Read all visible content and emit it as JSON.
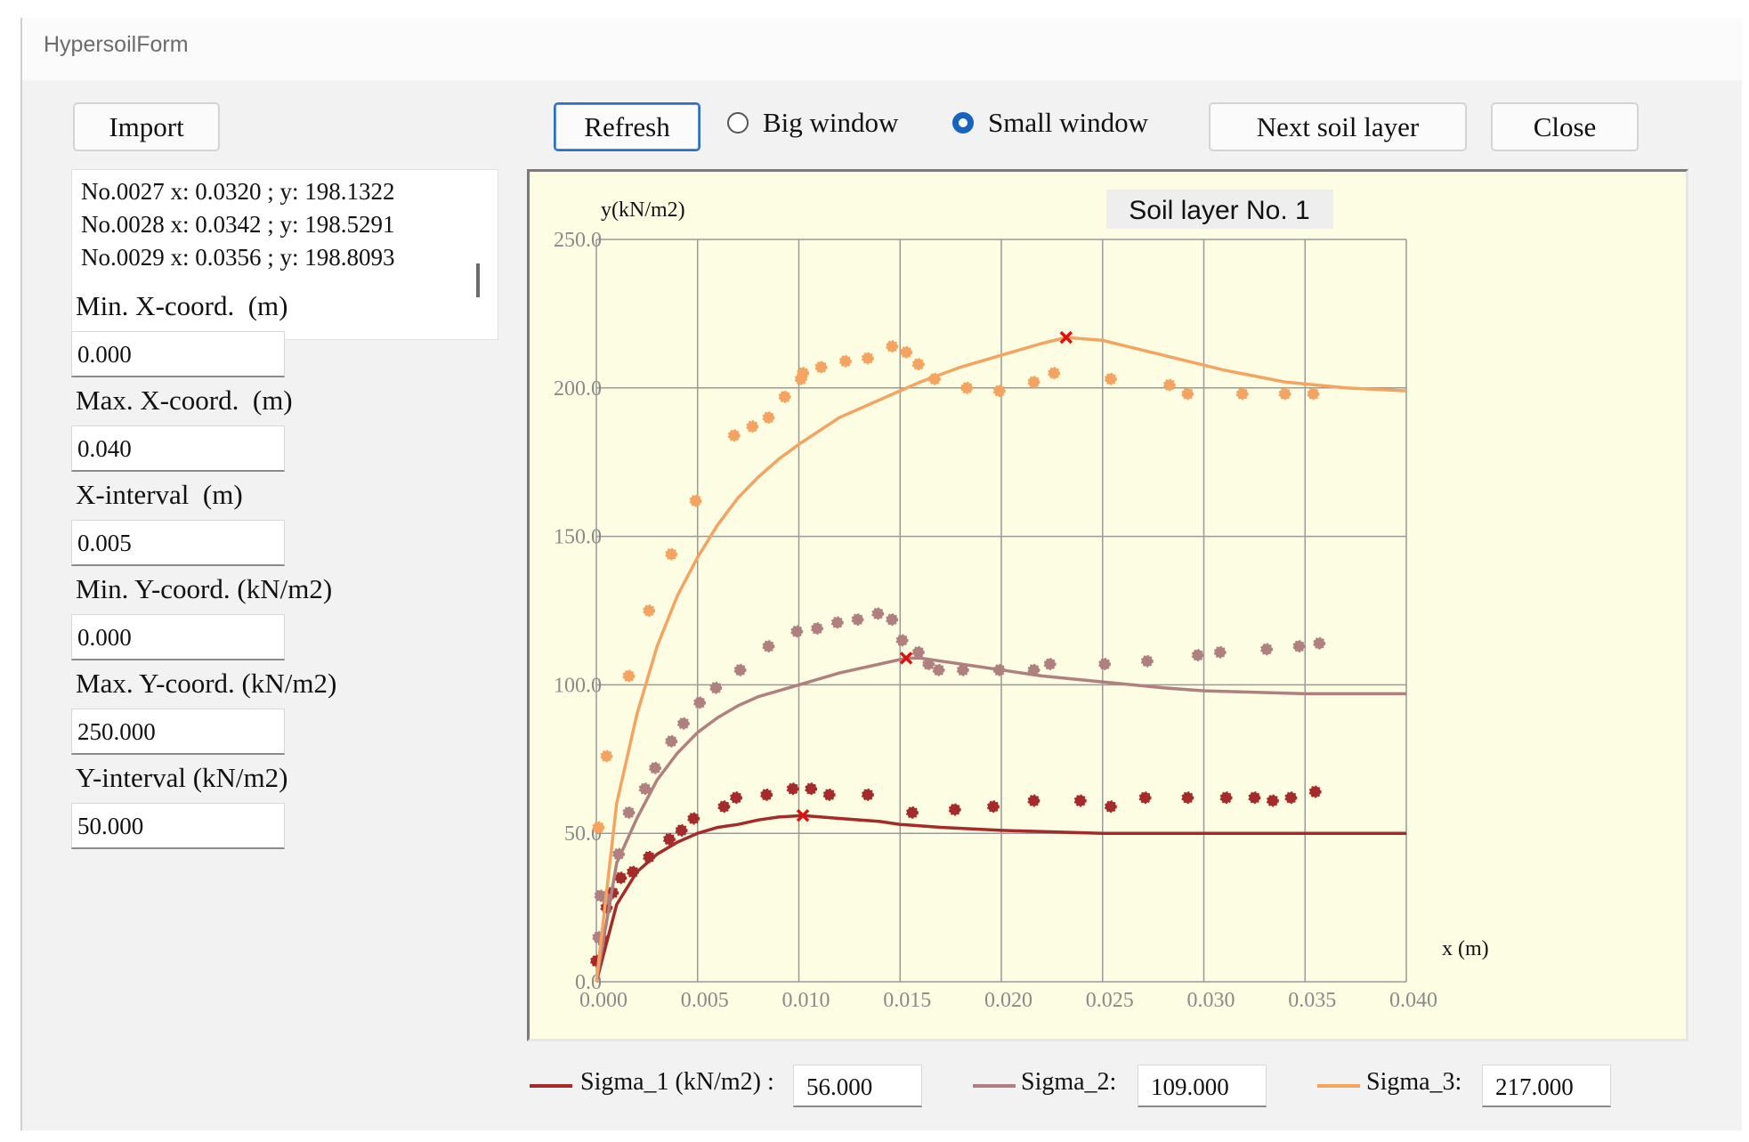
{
  "window": {
    "title": "HypersoilForm"
  },
  "toolbar": {
    "import_label": "Import",
    "refresh_label": "Refresh",
    "big_window_label": "Big window",
    "small_window_label": "Small window",
    "selected_window": "Small window",
    "next_layer_label": "Next soil layer",
    "close_label": "Close"
  },
  "points_list": [
    "No.0027 x: 0.0320 ; y: 198.1322",
    "No.0028 x: 0.0342 ; y: 198.5291",
    "No.0029 x: 0.0356 ; y: 198.8093"
  ],
  "fields": {
    "min_x": {
      "label": "Min. X-coord.  (m)",
      "value": "0.000"
    },
    "max_x": {
      "label": "Max. X-coord.  (m)",
      "value": "0.040"
    },
    "x_interval": {
      "label": "X-interval  (m)",
      "value": "0.005"
    },
    "min_y": {
      "label": "Min. Y-coord. (kN/m2)",
      "value": "0.000"
    },
    "max_y": {
      "label": "Max. Y-coord. (kN/m2)",
      "value": "250.000"
    },
    "y_interval": {
      "label": "Y-interval (kN/m2)",
      "value": "50.000"
    }
  },
  "legend": {
    "sigma1_label": "Sigma_1 (kN/m2) :",
    "sigma1_value": "56.000",
    "sigma2_label": "Sigma_2:",
    "sigma2_value": "109.000",
    "sigma3_label": "Sigma_3:",
    "sigma3_value": "217.000"
  },
  "chart_data": {
    "type": "scatter",
    "title": "Soil layer No. 1",
    "xlabel": "x (m)",
    "ylabel": "y(kN/m2)",
    "xlim": [
      0,
      0.04
    ],
    "ylim": [
      0,
      250
    ],
    "x_ticks": [
      "0.000",
      "0.005",
      "0.010",
      "0.015",
      "0.020",
      "0.025",
      "0.030",
      "0.035",
      "0.040"
    ],
    "y_ticks": [
      "0.0",
      "50.0",
      "100.0",
      "150.0",
      "200.0",
      "250.0"
    ],
    "grid": true,
    "series": [
      {
        "name": "Sigma_1 (kN/m2)",
        "color": "#a52a2a",
        "points": [
          [
            0.0,
            7
          ],
          [
            0.0003,
            14
          ],
          [
            0.0005,
            25
          ],
          [
            0.0008,
            30
          ],
          [
            0.0012,
            35
          ],
          [
            0.0018,
            37
          ],
          [
            0.0026,
            42
          ],
          [
            0.0036,
            48
          ],
          [
            0.0042,
            51
          ],
          [
            0.0048,
            55
          ],
          [
            0.0063,
            59
          ],
          [
            0.0069,
            62
          ],
          [
            0.0084,
            63
          ],
          [
            0.0097,
            65
          ],
          [
            0.0106,
            65
          ],
          [
            0.0115,
            63
          ],
          [
            0.0134,
            63
          ],
          [
            0.0156,
            57
          ],
          [
            0.0177,
            58
          ],
          [
            0.0196,
            59
          ],
          [
            0.0216,
            61
          ],
          [
            0.0239,
            61
          ],
          [
            0.0254,
            59
          ],
          [
            0.0271,
            62
          ],
          [
            0.0292,
            62
          ],
          [
            0.0311,
            62
          ],
          [
            0.0325,
            62
          ],
          [
            0.0334,
            61
          ],
          [
            0.0343,
            62
          ],
          [
            0.0355,
            64
          ]
        ],
        "curve": [
          [
            0,
            0
          ],
          [
            0.001,
            26
          ],
          [
            0.002,
            37
          ],
          [
            0.003,
            43
          ],
          [
            0.004,
            47
          ],
          [
            0.005,
            50
          ],
          [
            0.006,
            52
          ],
          [
            0.007,
            53
          ],
          [
            0.008,
            54.5
          ],
          [
            0.009,
            55.5
          ],
          [
            0.0102,
            56
          ],
          [
            0.012,
            55
          ],
          [
            0.014,
            54
          ],
          [
            0.015,
            53
          ],
          [
            0.017,
            52
          ],
          [
            0.02,
            51
          ],
          [
            0.025,
            50
          ],
          [
            0.03,
            50
          ],
          [
            0.035,
            50
          ],
          [
            0.04,
            50
          ]
        ],
        "peak": [
          0.0102,
          56
        ]
      },
      {
        "name": "Sigma_2",
        "color": "#b08080",
        "points": [
          [
            0.0001,
            15
          ],
          [
            0.0002,
            29
          ],
          [
            0.0005,
            28
          ],
          [
            0.0011,
            43
          ],
          [
            0.0016,
            57
          ],
          [
            0.0024,
            65
          ],
          [
            0.0029,
            72
          ],
          [
            0.0037,
            81
          ],
          [
            0.0043,
            87
          ],
          [
            0.0051,
            94
          ],
          [
            0.0059,
            99
          ],
          [
            0.0071,
            105
          ],
          [
            0.0085,
            113
          ],
          [
            0.0099,
            118
          ],
          [
            0.0109,
            119
          ],
          [
            0.0119,
            121
          ],
          [
            0.0129,
            122
          ],
          [
            0.0139,
            124
          ],
          [
            0.0146,
            122
          ],
          [
            0.0151,
            115
          ],
          [
            0.0159,
            111
          ],
          [
            0.0164,
            107
          ],
          [
            0.0169,
            105
          ],
          [
            0.0181,
            105
          ],
          [
            0.0199,
            105
          ],
          [
            0.0216,
            105
          ],
          [
            0.0224,
            107
          ],
          [
            0.0251,
            107
          ],
          [
            0.0272,
            108
          ],
          [
            0.0297,
            110
          ],
          [
            0.0308,
            111
          ],
          [
            0.0331,
            112
          ],
          [
            0.0347,
            113
          ],
          [
            0.0357,
            114
          ]
        ],
        "curve": [
          [
            0,
            0
          ],
          [
            0.001,
            40
          ],
          [
            0.002,
            55
          ],
          [
            0.003,
            68
          ],
          [
            0.004,
            77
          ],
          [
            0.005,
            84
          ],
          [
            0.006,
            89
          ],
          [
            0.007,
            93
          ],
          [
            0.008,
            96
          ],
          [
            0.009,
            98
          ],
          [
            0.01,
            100
          ],
          [
            0.012,
            104
          ],
          [
            0.014,
            107
          ],
          [
            0.0153,
            109
          ],
          [
            0.016,
            109
          ],
          [
            0.018,
            107
          ],
          [
            0.02,
            105
          ],
          [
            0.022,
            103
          ],
          [
            0.025,
            101
          ],
          [
            0.028,
            99
          ],
          [
            0.03,
            98
          ],
          [
            0.035,
            97
          ],
          [
            0.04,
            97
          ]
        ],
        "peak": [
          0.0153,
          109
        ]
      },
      {
        "name": "Sigma_3",
        "color": "#f4a460",
        "points": [
          [
            0.0001,
            52
          ],
          [
            0.0005,
            76
          ],
          [
            0.0016,
            103
          ],
          [
            0.0026,
            125
          ],
          [
            0.0037,
            144
          ],
          [
            0.0049,
            162
          ],
          [
            0.0068,
            184
          ],
          [
            0.0077,
            187
          ],
          [
            0.0085,
            190
          ],
          [
            0.0093,
            197
          ],
          [
            0.0101,
            203
          ],
          [
            0.0102,
            205
          ],
          [
            0.0111,
            207
          ],
          [
            0.0123,
            209
          ],
          [
            0.0134,
            210
          ],
          [
            0.0146,
            214
          ],
          [
            0.0153,
            212
          ],
          [
            0.0159,
            208
          ],
          [
            0.0167,
            203
          ],
          [
            0.0183,
            200
          ],
          [
            0.0199,
            199
          ],
          [
            0.0216,
            202
          ],
          [
            0.0226,
            205
          ],
          [
            0.0254,
            203
          ],
          [
            0.0283,
            201
          ],
          [
            0.0292,
            198
          ],
          [
            0.0319,
            198
          ],
          [
            0.034,
            198
          ],
          [
            0.0354,
            198
          ]
        ],
        "curve": [
          [
            0,
            0
          ],
          [
            0.001,
            60
          ],
          [
            0.002,
            90
          ],
          [
            0.003,
            113
          ],
          [
            0.004,
            130
          ],
          [
            0.005,
            143
          ],
          [
            0.006,
            154
          ],
          [
            0.007,
            163
          ],
          [
            0.008,
            170
          ],
          [
            0.009,
            176
          ],
          [
            0.01,
            181
          ],
          [
            0.012,
            190
          ],
          [
            0.014,
            196
          ],
          [
            0.016,
            202
          ],
          [
            0.018,
            207
          ],
          [
            0.02,
            211
          ],
          [
            0.022,
            215
          ],
          [
            0.0232,
            217
          ],
          [
            0.025,
            216
          ],
          [
            0.028,
            211
          ],
          [
            0.031,
            206
          ],
          [
            0.034,
            202
          ],
          [
            0.037,
            200
          ],
          [
            0.04,
            199
          ]
        ],
        "peak": [
          0.0232,
          217
        ]
      }
    ]
  }
}
